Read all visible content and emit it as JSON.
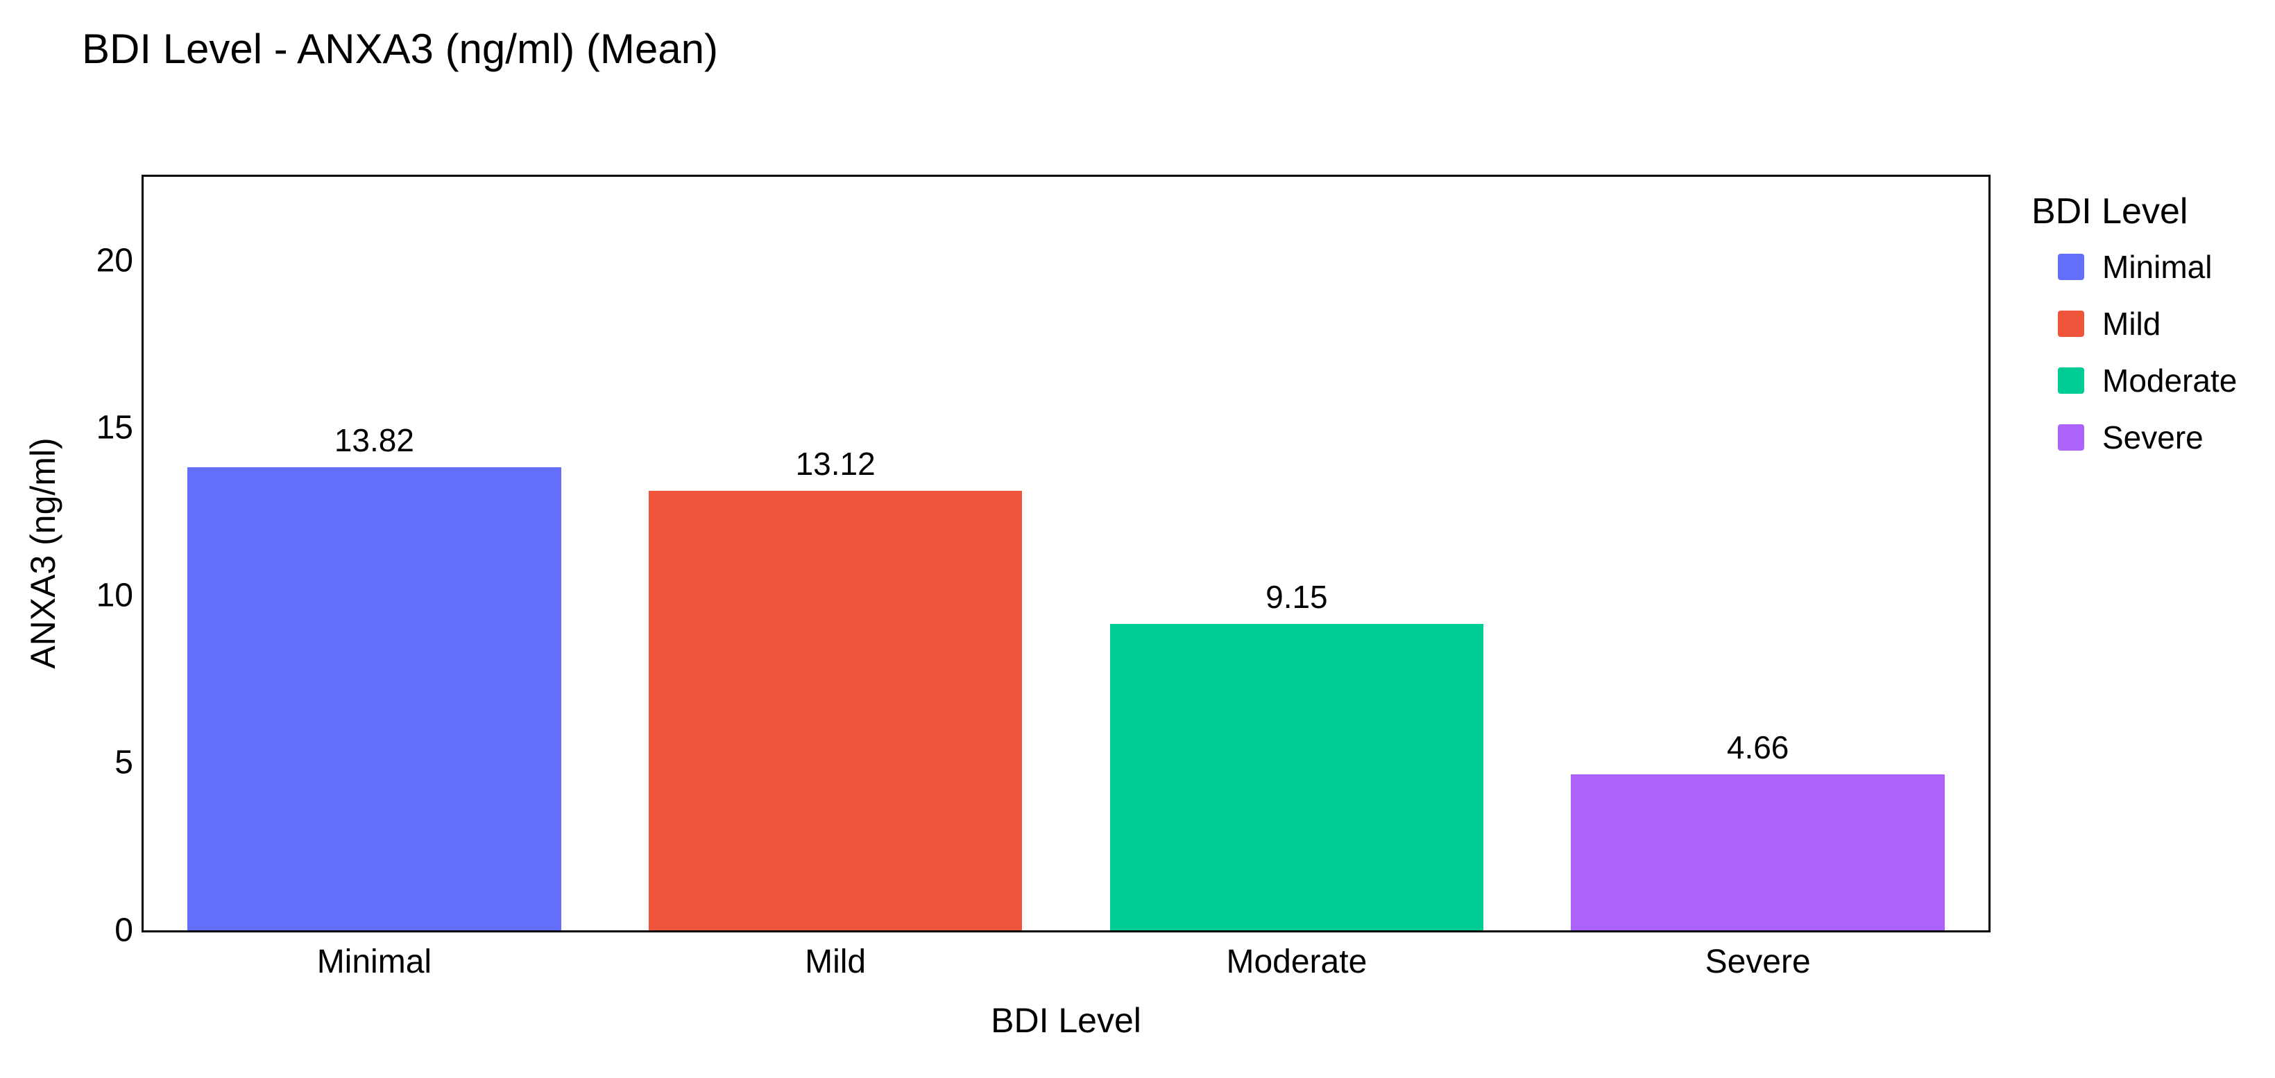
{
  "chart_data": {
    "type": "bar",
    "title": "BDI Level - ANXA3 (ng/ml) (Mean)",
    "xlabel": "BDI Level",
    "ylabel": "ANXA3 (ng/ml)",
    "categories": [
      "Minimal",
      "Mild",
      "Moderate",
      "Severe"
    ],
    "values": [
      13.82,
      13.12,
      9.15,
      4.66
    ],
    "value_labels": [
      "13.82",
      "13.12",
      "9.15",
      "4.66"
    ],
    "colors": [
      "#636EFA",
      "#EF553B",
      "#00CC96",
      "#AB63FA"
    ],
    "ylim": [
      0,
      22.5
    ],
    "yticks": [
      0,
      5,
      10,
      15,
      20
    ],
    "grid": false,
    "background": "#FFFFFF",
    "frame_color": "#000000",
    "legend": {
      "title": "BDI Level",
      "position": "right",
      "entries": [
        {
          "label": "Minimal",
          "color": "#636EFA"
        },
        {
          "label": "Mild",
          "color": "#EF553B"
        },
        {
          "label": "Moderate",
          "color": "#00CC96"
        },
        {
          "label": "Severe",
          "color": "#AB63FA"
        }
      ]
    }
  }
}
